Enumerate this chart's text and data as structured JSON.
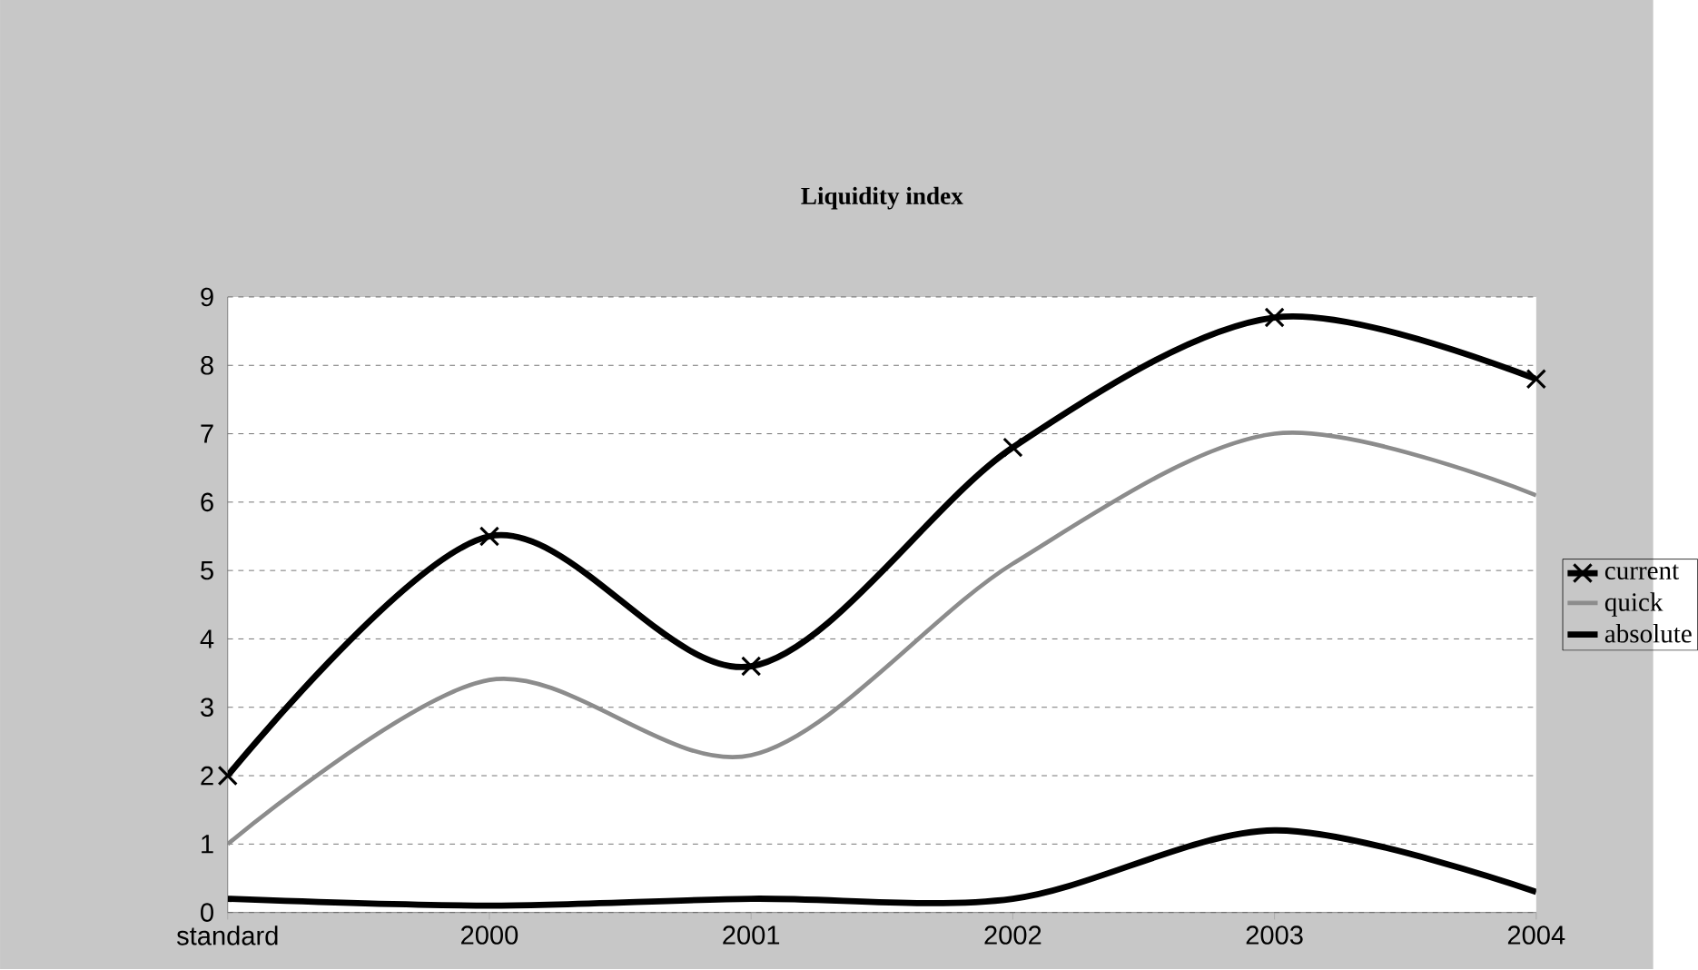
{
  "chart_data": {
    "type": "line",
    "title": "Liquidity index",
    "categories": [
      "standard",
      "2000",
      "2001",
      "2002",
      "2003",
      "2004"
    ],
    "series": [
      {
        "name": "current",
        "color": "#000000",
        "marker": "cross",
        "values": [
          2.0,
          5.5,
          3.6,
          6.8,
          8.7,
          7.8
        ]
      },
      {
        "name": "quick",
        "color": "#8c8c8c",
        "marker": "none",
        "values": [
          1.0,
          3.4,
          2.3,
          5.1,
          7.0,
          6.1
        ]
      },
      {
        "name": "absolute",
        "color": "#000000",
        "marker": "none",
        "values": [
          0.2,
          0.1,
          0.2,
          0.2,
          1.2,
          0.3
        ]
      }
    ],
    "ylim": [
      0,
      9
    ],
    "yticks": [
      0,
      1,
      2,
      3,
      4,
      5,
      6,
      7,
      8,
      9
    ],
    "grid": "y",
    "legend": "right",
    "line_style": "solid"
  }
}
